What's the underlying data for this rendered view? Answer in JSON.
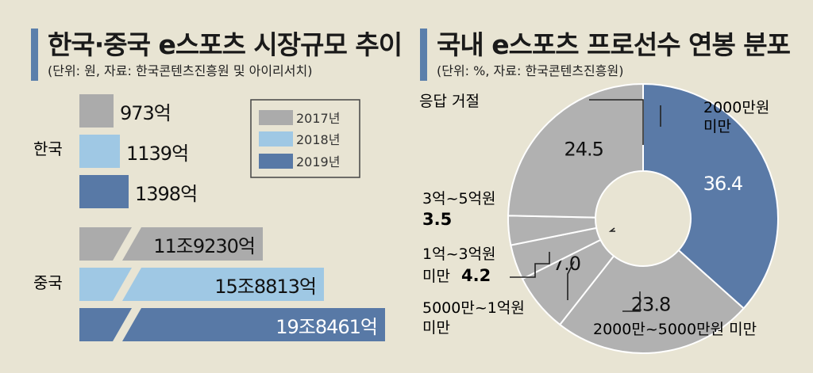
{
  "colors": {
    "y2017": "#ababab",
    "y2018": "#9fc8e4",
    "y2019": "#5879a6",
    "pie_gray": "#b1b1b1",
    "pie_blue": "#5a7aa7"
  },
  "chart_data": [
    {
      "type": "bar",
      "title": "한국·중국 e스포츠 시장규모 추이",
      "subtitle": "(단위: 원, 자료: 한국콘텐츠진흥원 및 아이리서치)",
      "categories": [
        "한국",
        "중국"
      ],
      "legend": [
        "2017년",
        "2018년",
        "2019년"
      ],
      "legend_position": "top-right",
      "series": [
        {
          "name": "2017년",
          "labels": [
            "973억",
            "11조9230억"
          ],
          "values": [
            973,
            119230
          ]
        },
        {
          "name": "2018년",
          "labels": [
            "1139억",
            "15조8813억"
          ],
          "values": [
            1139,
            158813
          ]
        },
        {
          "name": "2019년",
          "labels": [
            "1398억",
            "19조8461억"
          ],
          "values": [
            1398,
            198461
          ]
        }
      ]
    },
    {
      "type": "pie",
      "title": "국내 e스포츠 프로선수 연봉 분포",
      "subtitle": "(단위: %, 자료: 한국콘텐츠진흥원)",
      "slices": [
        {
          "label": "2000만원 미만",
          "value": 36.4,
          "text": "36.4",
          "color": "blue"
        },
        {
          "label": "2000만~5000만원 미만",
          "value": 23.8,
          "text": "23.8",
          "color": "gray"
        },
        {
          "label": "5000만~1억원 미만",
          "value": 7.0,
          "text": "7.0",
          "color": "gray"
        },
        {
          "label": "1억~3억원 미만",
          "value": 4.2,
          "text": "4.2",
          "color": "gray"
        },
        {
          "label": "3억~5억원",
          "value": 3.5,
          "text": "3.5",
          "color": "gray"
        },
        {
          "label": "응답 거절",
          "value": 24.5,
          "text": "24.5",
          "color": "gray"
        }
      ],
      "annotations": {
        "a1_line1": "2000만원",
        "a1_line2": "미만",
        "a2": "2000만~5000만원 미만",
        "a3_line1": "5000만~1억원",
        "a3_line2": "미만",
        "a4_line1": "1억~3억원",
        "a4_line2": "미만",
        "a4_value": "4.2",
        "a5_line1": "3억~5억원",
        "a5_value": "3.5",
        "a6": "응답 거절"
      }
    }
  ]
}
